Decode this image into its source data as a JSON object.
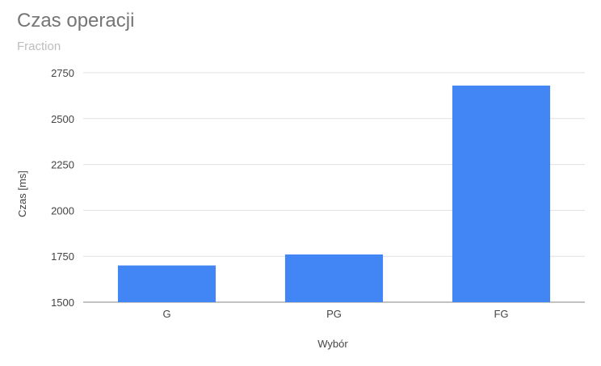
{
  "chart_data": {
    "type": "bar",
    "title": "Czas operacji",
    "subtitle": "Fraction",
    "xlabel": "Wybór",
    "ylabel": "Czas [ms]",
    "categories": [
      "G",
      "PG",
      "FG"
    ],
    "values": [
      1700,
      1760,
      2680
    ],
    "ylim": [
      1500,
      2750
    ],
    "yticks": [
      1500,
      1750,
      2000,
      2250,
      2500,
      2750
    ],
    "grid": true,
    "legend": "none",
    "colors": {
      "bar": "#4285f4",
      "grid": "#e0e0e0",
      "axis": "#9e9e9e",
      "tick_text": "#444444",
      "title": "#757575",
      "subtitle": "#bdbdbd"
    }
  }
}
